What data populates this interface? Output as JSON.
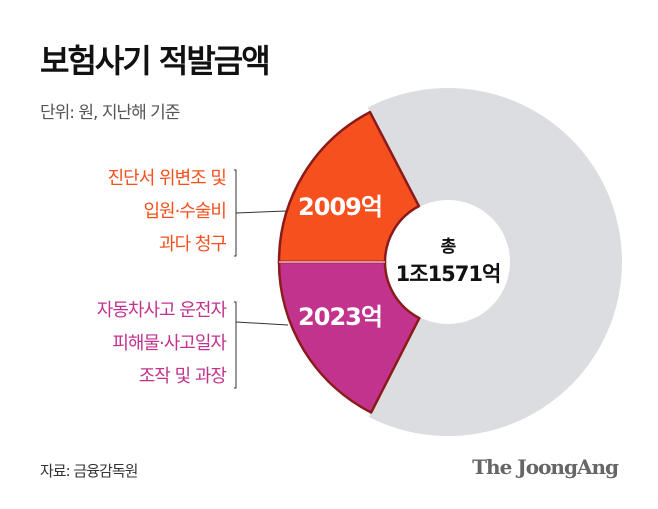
{
  "title": "보험사기 적발금액",
  "unit": "단위: 원, 지난해 기준",
  "source": "자료: 금융감독원",
  "logo": "The JoongAng",
  "chart_data": {
    "type": "pie",
    "variant": "donut",
    "center_label": [
      "총",
      "1조1571억"
    ],
    "total": 11571,
    "slices": [
      {
        "label": [
          "진단서 위변조 및",
          "입원·수술비",
          "과다 청구"
        ],
        "value": 2009,
        "value_label": "2009억",
        "color": "#f5501e",
        "highlighted": true
      },
      {
        "label": [
          "자동차사고 운전자",
          "피해물·사고일자",
          "조작 및 과장"
        ],
        "value": 2023,
        "value_label": "2023억",
        "color": "#c2338e",
        "highlighted": true
      },
      {
        "label": [],
        "value": 7539,
        "color": "#dcdde0",
        "highlighted": false
      }
    ],
    "outline_color": "#8b1a1a"
  }
}
